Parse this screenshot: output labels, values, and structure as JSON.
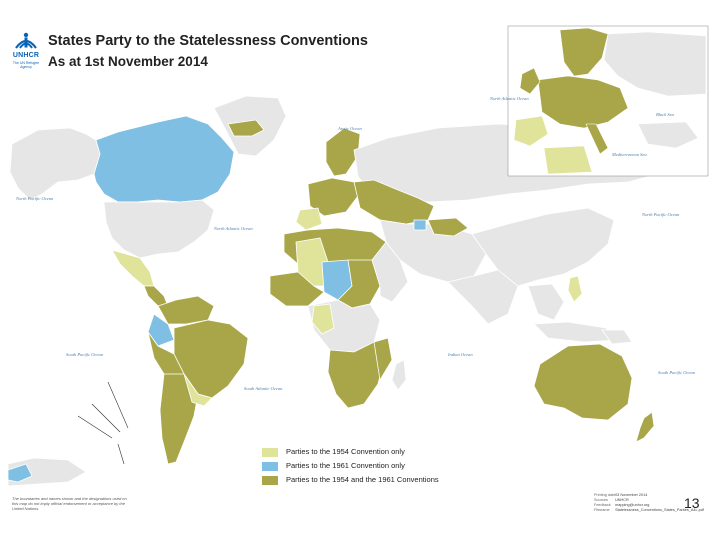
{
  "header": {
    "organization": "UNHCR",
    "organization_tagline": "The UN Refugee Agency",
    "title": "States Party to the Statelessness Conventions",
    "subtitle": "As at 1st November 2014"
  },
  "map": {
    "ocean_labels": {
      "north_pacific_west": "North Pacific Ocean",
      "north_pacific_east": "North Pacific Ocean",
      "north_atlantic": "North Atlantic Ocean",
      "south_pacific_west": "South Pacific Ocean",
      "south_pacific_east": "South Pacific Ocean",
      "south_atlantic": "South Atlantic Ocean",
      "indian": "Indian Ocean",
      "arctic": "Arctic Ocean"
    },
    "inset_labels": {
      "north_atlantic": "North Atlantic Ocean",
      "black_sea": "Black Sea",
      "mediterranean": "Mediterranean Sea"
    },
    "colors": {
      "ocean": "#ffffff",
      "non_party": "#e6e6e6",
      "party_1954_only": "#dfe49a",
      "party_1961_only": "#7fbfe3",
      "party_both": "#a8a648",
      "border": "#ffffff"
    }
  },
  "legend": {
    "items": [
      {
        "label": "Parties to the 1954 Convention only",
        "color": "#dfe49a"
      },
      {
        "label": "Parties to the 1961 Convention only",
        "color": "#7fbfe3"
      },
      {
        "label": "Parties to the 1954 and the 1961 Conventions",
        "color": "#a8a648"
      }
    ]
  },
  "footer": {
    "disclaimer": "The boundaries and names shown and the designations used on this map do not imply official endorsement or acceptance by the United Nations.",
    "meta": [
      {
        "key": "Printing date",
        "value": "03 November 2014"
      },
      {
        "key": "Sources",
        "value": "UNHCR"
      },
      {
        "key": "Feedback",
        "value": "mapping@unhcr.org"
      },
      {
        "key": "Filename",
        "value": "Statelessness_Conventions_States_Parties_A4L.pdf"
      }
    ],
    "page_number": "13"
  }
}
